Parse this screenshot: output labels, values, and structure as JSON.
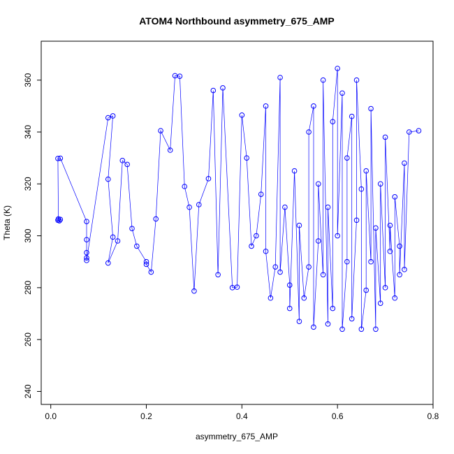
{
  "chart_data": {
    "type": "scatter",
    "title": "ATOM4 Northbound asymmetry_675_AMP",
    "xlabel": "asymmetry_675_AMP",
    "ylabel": "Theta (K)",
    "xlim": [
      -0.02,
      0.8
    ],
    "ylim": [
      235,
      375
    ],
    "x_ticks": [
      0.0,
      0.2,
      0.4,
      0.6,
      0.8
    ],
    "x_tick_labels": [
      "0.0",
      "0.2",
      "0.4",
      "0.6",
      "0.8"
    ],
    "y_ticks": [
      240,
      260,
      280,
      300,
      320,
      340,
      360
    ],
    "y_tick_labels": [
      "240",
      "260",
      "280",
      "300",
      "320",
      "340",
      "360"
    ],
    "grid": false,
    "legend": "none",
    "marker": "open-circle",
    "connected": true,
    "color": "#0000ff",
    "series": [
      {
        "points": [
          [
            0.015,
            306
          ],
          [
            0.02,
            306.3
          ],
          [
            0.018,
            305.8
          ],
          [
            0.016,
            306.5
          ],
          [
            0.015,
            329.8
          ],
          [
            0.02,
            329.9
          ],
          [
            0.075,
            305.5
          ],
          [
            0.075,
            298.5
          ],
          [
            0.075,
            293.5
          ],
          [
            0.075,
            291.5
          ],
          [
            0.075,
            290.5
          ],
          [
            0.12,
            345.5
          ],
          [
            0.13,
            346.2
          ],
          [
            0.12,
            321.8
          ],
          [
            0.13,
            299.5
          ],
          [
            0.12,
            289.5
          ],
          [
            0.14,
            298
          ],
          [
            0.15,
            329
          ],
          [
            0.16,
            327.5
          ],
          [
            0.17,
            302.8
          ],
          [
            0.18,
            296
          ],
          [
            0.2,
            290
          ],
          [
            0.2,
            289
          ],
          [
            0.21,
            286
          ],
          [
            0.22,
            306.5
          ],
          [
            0.23,
            340.5
          ],
          [
            0.25,
            333
          ],
          [
            0.26,
            361.7
          ],
          [
            0.27,
            361.5
          ],
          [
            0.28,
            319
          ],
          [
            0.29,
            311
          ],
          [
            0.3,
            278.7
          ],
          [
            0.31,
            312
          ],
          [
            0.33,
            322
          ],
          [
            0.34,
            356
          ],
          [
            0.35,
            285
          ],
          [
            0.36,
            357
          ],
          [
            0.38,
            280
          ],
          [
            0.39,
            280.2
          ],
          [
            0.4,
            346.5
          ],
          [
            0.41,
            330
          ],
          [
            0.42,
            296
          ],
          [
            0.43,
            300
          ],
          [
            0.44,
            316
          ],
          [
            0.45,
            350
          ],
          [
            0.45,
            294
          ],
          [
            0.46,
            276
          ],
          [
            0.47,
            288
          ],
          [
            0.48,
            361
          ],
          [
            0.48,
            286
          ],
          [
            0.49,
            311
          ],
          [
            0.5,
            281
          ],
          [
            0.5,
            272
          ],
          [
            0.51,
            325
          ],
          [
            0.52,
            267
          ],
          [
            0.52,
            304
          ],
          [
            0.53,
            276
          ],
          [
            0.54,
            288
          ],
          [
            0.54,
            340
          ],
          [
            0.55,
            350
          ],
          [
            0.55,
            264.8
          ],
          [
            0.56,
            298
          ],
          [
            0.56,
            320
          ],
          [
            0.57,
            285
          ],
          [
            0.57,
            360
          ],
          [
            0.58,
            266
          ],
          [
            0.58,
            311
          ],
          [
            0.59,
            272
          ],
          [
            0.59,
            344
          ],
          [
            0.6,
            364.5
          ],
          [
            0.6,
            300
          ],
          [
            0.61,
            355
          ],
          [
            0.61,
            264
          ],
          [
            0.62,
            290
          ],
          [
            0.62,
            330
          ],
          [
            0.63,
            346
          ],
          [
            0.63,
            268
          ],
          [
            0.64,
            306
          ],
          [
            0.64,
            360
          ],
          [
            0.65,
            318
          ],
          [
            0.65,
            264
          ],
          [
            0.66,
            279
          ],
          [
            0.66,
            325
          ],
          [
            0.67,
            290
          ],
          [
            0.67,
            349
          ],
          [
            0.68,
            264
          ],
          [
            0.68,
            303
          ],
          [
            0.69,
            274
          ],
          [
            0.69,
            320
          ],
          [
            0.7,
            280
          ],
          [
            0.7,
            338
          ],
          [
            0.71,
            294
          ],
          [
            0.71,
            304
          ],
          [
            0.72,
            276
          ],
          [
            0.72,
            315
          ],
          [
            0.73,
            296
          ],
          [
            0.73,
            285
          ],
          [
            0.74,
            328
          ],
          [
            0.74,
            287
          ],
          [
            0.75,
            340
          ],
          [
            0.77,
            340.5
          ]
        ]
      }
    ]
  }
}
